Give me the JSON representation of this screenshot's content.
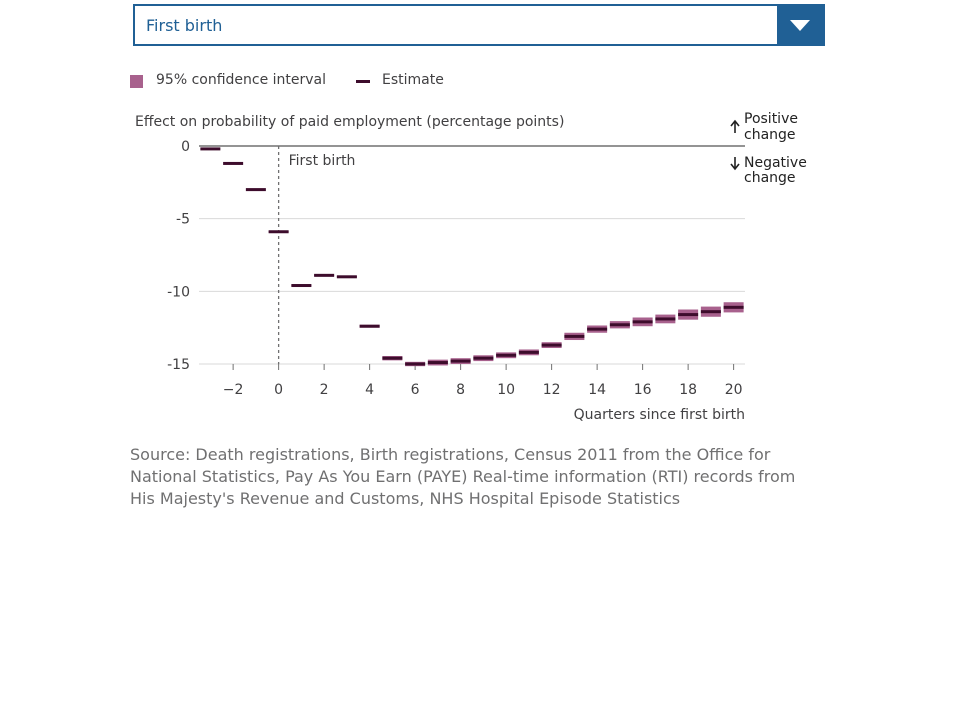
{
  "dropdown": {
    "selected": "First birth"
  },
  "legend": {
    "ci_label": "95% confidence interval",
    "estimate_label": "Estimate"
  },
  "colors": {
    "ci": "#a8618d",
    "estimate": "#3d0c2c",
    "accent": "#206095",
    "axis": "#707071",
    "grid": "#d9d9d9"
  },
  "annotations": {
    "positive": [
      "Positive",
      "change"
    ],
    "negative": [
      "Negative",
      "change"
    ],
    "event_label": "First birth"
  },
  "chart_data": {
    "type": "scatter",
    "ylabel": "Effect on probability of paid employment (percentage points)",
    "xlabel": "Quarters since first birth",
    "xlim": [
      -3.5,
      20.5
    ],
    "ylim": [
      -15,
      0
    ],
    "x_ticks": [
      -2,
      0,
      2,
      4,
      6,
      8,
      10,
      12,
      14,
      16,
      18,
      20
    ],
    "x_tick_labels": [
      "−2",
      "0",
      "2",
      "4",
      "6",
      "8",
      "10",
      "12",
      "14",
      "16",
      "18",
      "20"
    ],
    "y_ticks": [
      0,
      -5,
      -10,
      -15
    ],
    "y_tick_labels": [
      "0",
      "-5",
      "-10",
      "-15"
    ],
    "grid": "horizontal",
    "legend_position": "top-left",
    "reference_line_x": 0,
    "series": [
      {
        "name": "Estimate",
        "x": [
          -3,
          -2,
          -1,
          0,
          1,
          2,
          3,
          4,
          5,
          6,
          7,
          8,
          9,
          10,
          11,
          12,
          13,
          14,
          15,
          16,
          17,
          18,
          19,
          20
        ],
        "values": [
          -0.2,
          -1.2,
          -3.0,
          -5.9,
          -9.6,
          -8.9,
          -9.0,
          -12.4,
          -14.6,
          -15.0,
          -14.9,
          -14.8,
          -14.6,
          -14.4,
          -14.2,
          -13.7,
          -13.1,
          -12.6,
          -12.3,
          -12.1,
          -11.9,
          -11.6,
          -11.4,
          -11.1
        ],
        "ci_low": [
          -0.2,
          -1.2,
          -3.0,
          -5.95,
          -9.65,
          -8.95,
          -9.05,
          -12.5,
          -14.75,
          -15.15,
          -15.1,
          -15.0,
          -14.8,
          -14.6,
          -14.4,
          -13.9,
          -13.35,
          -12.85,
          -12.55,
          -12.4,
          -12.2,
          -11.95,
          -11.75,
          -11.45
        ],
        "ci_high": [
          -0.2,
          -1.2,
          -3.0,
          -5.85,
          -9.55,
          -8.85,
          -8.95,
          -12.3,
          -14.45,
          -14.85,
          -14.7,
          -14.6,
          -14.4,
          -14.2,
          -14.0,
          -13.5,
          -12.85,
          -12.35,
          -12.05,
          -11.8,
          -11.6,
          -11.25,
          -11.05,
          -10.75
        ]
      }
    ]
  },
  "source": "Source: Death registrations, Birth registrations, Census 2011 from the Office for National Statistics, Pay As You Earn (PAYE) Real-time information (RTI) records from His Majesty's Revenue and Customs, NHS Hospital Episode Statistics"
}
